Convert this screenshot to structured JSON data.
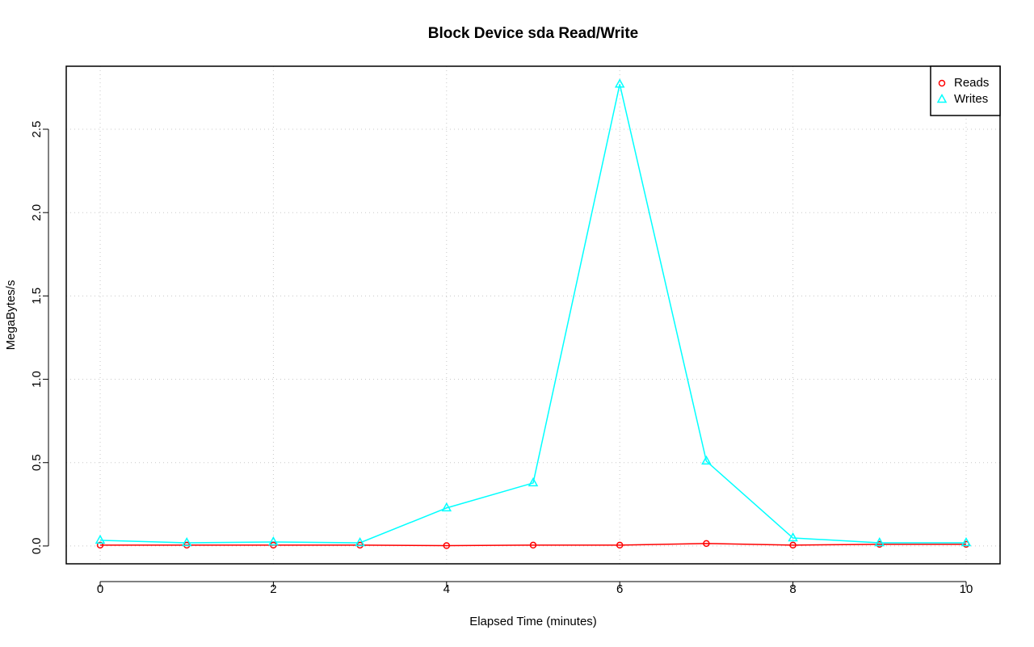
{
  "chart_data": {
    "type": "line",
    "title": "Block Device sda Read/Write",
    "xlabel": "Elapsed Time (minutes)",
    "ylabel": "MegaBytes/s",
    "x": [
      0,
      1,
      2,
      3,
      4,
      5,
      6,
      7,
      8,
      9,
      10
    ],
    "series": [
      {
        "name": "Reads",
        "color": "#ff0000",
        "marker": "circle",
        "values": [
          0.005,
          0.005,
          0.005,
          0.005,
          0.002,
          0.005,
          0.005,
          0.015,
          0.005,
          0.01,
          0.01
        ]
      },
      {
        "name": "Writes",
        "color": "#00ffff",
        "marker": "triangle",
        "values": [
          0.034,
          0.019,
          0.024,
          0.019,
          0.228,
          0.378,
          2.77,
          0.509,
          0.048,
          0.019,
          0.019
        ]
      }
    ],
    "xlim": [
      -0.392,
      10.392
    ],
    "ylim": [
      -0.107,
      2.878
    ],
    "xticks": [
      0,
      2,
      4,
      6,
      8,
      10
    ],
    "yticks": [
      {
        "value": 0,
        "label": "0.0"
      },
      0.5,
      {
        "value": 1,
        "label": "1.0"
      },
      1.5,
      {
        "value": 2,
        "label": "2.0"
      },
      2.5
    ],
    "grid": true,
    "legend": "topright"
  }
}
